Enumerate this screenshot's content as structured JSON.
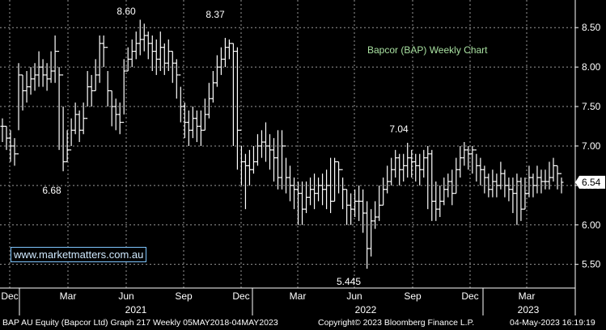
{
  "chart_data": {
    "type": "ohlc",
    "title": "Bapcor (BAP) Weekly Chart",
    "ylim": [
      5.2,
      8.85
    ],
    "yticks": [
      "8.50",
      "8.00",
      "7.50",
      "7.00",
      "6.50",
      "6.00",
      "5.50"
    ],
    "x_tick_labels": [
      "Dec",
      "Mar",
      "Jun",
      "Sep",
      "Dec",
      "Mar",
      "Jun",
      "Sep",
      "Dec",
      "Mar"
    ],
    "year_labels": [
      "2021",
      "2022",
      "2023"
    ],
    "last_price": "6.54",
    "annotations": [
      "8.60",
      "8.37",
      "6.68",
      "7.04",
      "5.445"
    ],
    "close": [
      7.25,
      7.1,
      7.0,
      6.9,
      7.9,
      7.7,
      7.75,
      7.85,
      7.9,
      8.0,
      7.9,
      7.85,
      7.95,
      8.2,
      7.9,
      6.8,
      6.95,
      7.2,
      7.4,
      7.2,
      7.35,
      7.75,
      7.7,
      7.9,
      8.3,
      8.25,
      7.7,
      7.5,
      7.4,
      7.3,
      7.95,
      8.1,
      8.2,
      8.3,
      8.35,
      8.4,
      8.3,
      8.2,
      8.1,
      8.25,
      8.05,
      8.2,
      8.05,
      7.9,
      7.5,
      7.3,
      7.2,
      7.35,
      7.25,
      7.2,
      7.4,
      7.6,
      7.8,
      8.0,
      8.1,
      8.25,
      8.3,
      8.2,
      7.2,
      6.8,
      6.75,
      6.7,
      6.8,
      7.0,
      7.05,
      7.0,
      6.95,
      6.85,
      6.6,
      7.0,
      6.6,
      6.5,
      6.45,
      6.4,
      6.2,
      6.35,
      6.45,
      6.4,
      6.5,
      6.45,
      6.5,
      6.3,
      6.8,
      6.7,
      6.45,
      6.25,
      6.2,
      6.3,
      6.3,
      6.15,
      5.7,
      6.05,
      6.1,
      6.25,
      6.45,
      6.55,
      6.7,
      6.85,
      6.7,
      6.75,
      6.85,
      6.8,
      6.75,
      6.7,
      6.85,
      6.9,
      6.3,
      6.2,
      6.3,
      6.45,
      6.55,
      6.4,
      6.7,
      6.85,
      6.95,
      6.9,
      6.95,
      6.75,
      6.7,
      6.6,
      6.45,
      6.55,
      6.5,
      6.65,
      6.5,
      6.45,
      6.4,
      6.55,
      6.2,
      6.4,
      6.6,
      6.5,
      6.6,
      6.55,
      6.55,
      6.6,
      6.75,
      6.65,
      6.54
    ],
    "high": [
      7.35,
      7.25,
      7.2,
      7.1,
      8.05,
      7.9,
      7.95,
      8.0,
      8.05,
      8.2,
      8.1,
      8.05,
      8.2,
      8.4,
      8.0,
      7.5,
      7.2,
      7.35,
      7.55,
      7.45,
      7.55,
      7.95,
      7.9,
      8.1,
      8.4,
      8.4,
      7.95,
      7.7,
      7.6,
      7.55,
      8.1,
      8.25,
      8.35,
      8.45,
      8.6,
      8.55,
      8.45,
      8.4,
      8.35,
      8.45,
      8.3,
      8.35,
      8.2,
      8.1,
      7.75,
      7.55,
      7.45,
      7.5,
      7.45,
      7.45,
      7.6,
      7.8,
      7.95,
      8.15,
      8.25,
      8.37,
      8.35,
      8.3,
      8.25,
      7.0,
      6.9,
      6.95,
      7.0,
      7.15,
      7.2,
      7.3,
      7.15,
      7.1,
      7.2,
      7.2,
      6.85,
      6.75,
      6.6,
      6.55,
      6.55,
      6.55,
      6.6,
      6.65,
      6.6,
      6.65,
      6.7,
      6.85,
      6.85,
      6.8,
      6.6,
      6.45,
      6.4,
      6.45,
      6.5,
      6.45,
      6.3,
      6.2,
      6.3,
      6.5,
      6.6,
      6.75,
      6.85,
      6.95,
      6.9,
      6.9,
      7.04,
      6.95,
      6.9,
      6.9,
      6.95,
      7.0,
      6.95,
      6.55,
      6.5,
      6.6,
      6.65,
      6.7,
      6.85,
      7.0,
      7.05,
      7.0,
      7.0,
      6.9,
      6.85,
      6.75,
      6.65,
      6.7,
      6.65,
      6.8,
      6.7,
      6.6,
      6.6,
      6.65,
      6.6,
      6.6,
      6.75,
      6.65,
      6.75,
      6.7,
      6.7,
      6.8,
      6.85,
      6.75,
      6.6
    ],
    "low": [
      7.05,
      6.95,
      6.8,
      6.75,
      7.2,
      7.45,
      7.55,
      7.65,
      7.7,
      7.75,
      7.75,
      7.7,
      7.8,
      7.8,
      6.95,
      6.68,
      6.8,
      7.0,
      7.15,
      7.05,
      7.15,
      7.5,
      7.5,
      7.7,
      7.8,
      8.0,
      7.5,
      7.25,
      7.2,
      7.15,
      7.4,
      7.95,
      8.0,
      8.1,
      8.15,
      8.2,
      8.1,
      7.95,
      7.9,
      7.95,
      7.9,
      7.95,
      7.8,
      7.6,
      7.3,
      7.1,
      7.0,
      7.1,
      7.05,
      7.0,
      7.2,
      7.35,
      7.55,
      7.75,
      7.9,
      8.0,
      8.1,
      7.0,
      6.7,
      6.5,
      6.2,
      6.5,
      6.65,
      6.75,
      6.85,
      6.8,
      6.7,
      6.55,
      6.45,
      6.45,
      6.4,
      6.3,
      6.2,
      6.0,
      6.0,
      6.15,
      6.25,
      6.2,
      6.3,
      6.25,
      6.2,
      6.15,
      6.3,
      6.4,
      6.2,
      6.0,
      6.0,
      6.1,
      6.05,
      5.9,
      5.445,
      5.6,
      5.95,
      6.05,
      6.25,
      6.4,
      6.5,
      6.6,
      6.5,
      6.55,
      6.6,
      6.6,
      6.55,
      6.5,
      6.6,
      6.2,
      6.05,
      6.05,
      6.1,
      6.25,
      6.35,
      6.25,
      6.4,
      6.6,
      6.75,
      6.7,
      6.65,
      6.55,
      6.5,
      6.4,
      6.35,
      6.35,
      6.35,
      6.45,
      6.35,
      6.3,
      6.15,
      6.0,
      6.05,
      6.2,
      6.35,
      6.35,
      6.4,
      6.4,
      6.45,
      6.45,
      6.55,
      6.45,
      6.4
    ],
    "colors": {
      "background": "#000000",
      "bars": "#ffffff",
      "grid": "#9a9a9a",
      "title": "#a8e0a0",
      "price_tag_bg": "#ffffff",
      "price_tag_text": "#000000"
    }
  },
  "watermark": "www.marketmatters.com.au",
  "footer": {
    "left": "BAP AU Equity (Bapcor Ltd) Graph 217  Weekly 05MAY2018-04MAY2023",
    "center": "Copyright© 2023 Bloomberg Finance L.P.",
    "right": "04-May-2023 16:19:19"
  }
}
